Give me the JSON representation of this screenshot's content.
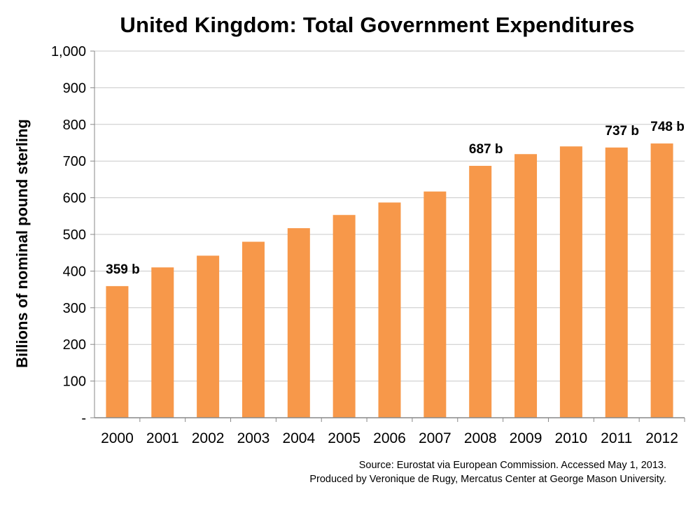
{
  "chart_data": {
    "type": "bar",
    "title": "United Kingdom: Total Government Expenditures",
    "ylabel": "Billions of nominal pound sterling",
    "xlabel": "",
    "categories": [
      "2000",
      "2001",
      "2002",
      "2003",
      "2004",
      "2005",
      "2006",
      "2007",
      "2008",
      "2009",
      "2010",
      "2011",
      "2012"
    ],
    "values": [
      359,
      410,
      442,
      480,
      517,
      553,
      587,
      617,
      687,
      719,
      740,
      737,
      748
    ],
    "data_labels": {
      "2000": "359 b",
      "2008": "687 b",
      "2011": "737 b",
      "2012": "748 b"
    },
    "ylim": [
      0,
      1000
    ],
    "yticks": [
      0,
      100,
      200,
      300,
      400,
      500,
      600,
      700,
      800,
      900,
      1000
    ],
    "ytick_labels": [
      "-",
      "100",
      "200",
      "300",
      "400",
      "500",
      "600",
      "700",
      "800",
      "900",
      "1,000"
    ],
    "grid": true,
    "bar_color": "#F7984A",
    "grid_color": "#C8C8C8"
  },
  "footer": {
    "source_line1": "Source: Eurostat via European Commission. Accessed May 1, 2013.",
    "source_line2": "Produced by Veronique de Rugy, Mercatus Center at George Mason University."
  }
}
